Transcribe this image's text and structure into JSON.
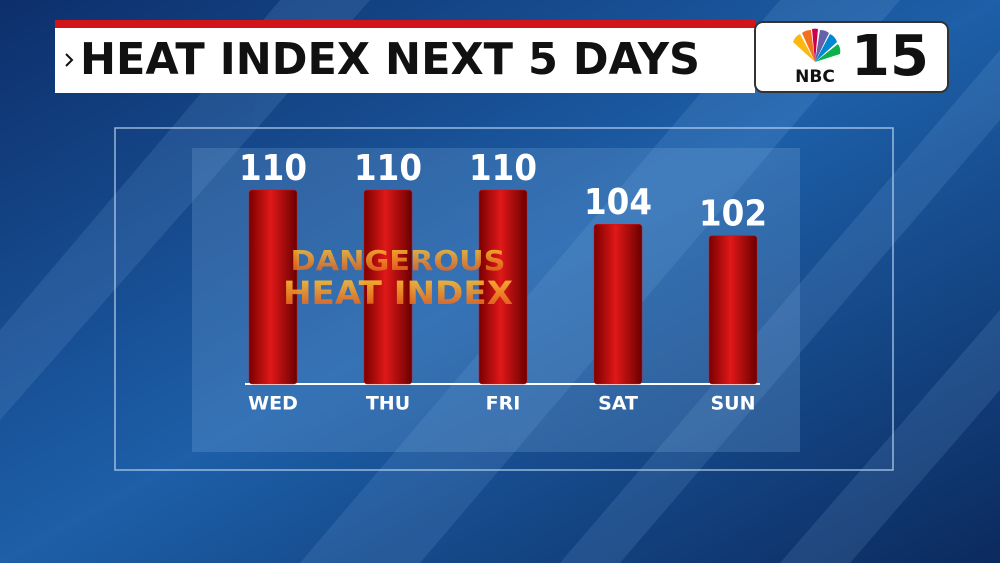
{
  "chart_data": {
    "type": "bar",
    "title": "HEAT INDEX NEXT 5 DAYS",
    "categories": [
      "WED",
      "THU",
      "FRI",
      "SAT",
      "SUN"
    ],
    "values": [
      110,
      110,
      110,
      104,
      102
    ],
    "color": "#d0141a",
    "ylim": [
      76,
      110
    ],
    "annotations": [
      "DANGEROUS",
      "HEAT INDEX"
    ]
  },
  "logo": {
    "network": "NBC",
    "channel": "15"
  }
}
